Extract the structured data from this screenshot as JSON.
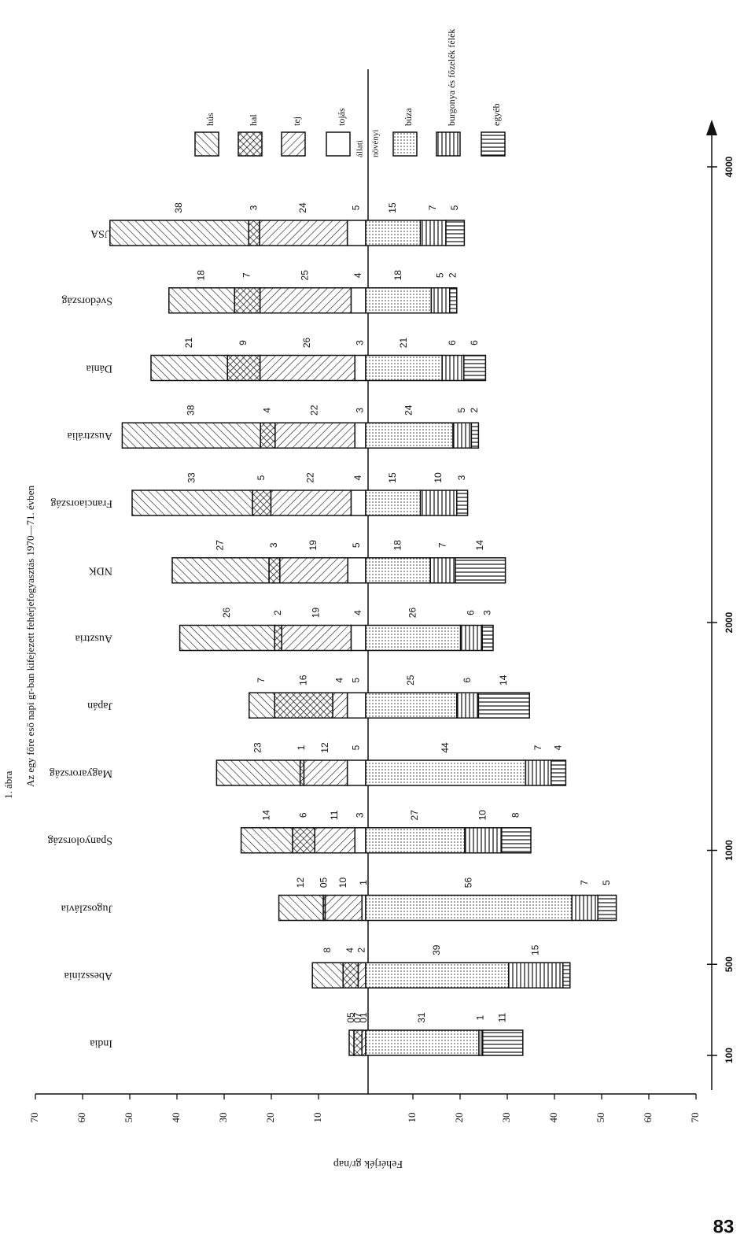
{
  "chart_data": {
    "type": "diverging_bar",
    "title": "1. ábra",
    "subtitle": "Az egy főre eső napi gr-ban kifejezett fehérjefogyasztás 1970—71. évben",
    "xlabel": "Fehérjék gr/nap",
    "group_labels": [
      "állati",
      "növényi"
    ],
    "categories": [
      "USA",
      "Svédország",
      "Dánia",
      "Ausztrália",
      "Franciaország",
      "NDK",
      "Ausztria",
      "Japán",
      "Magyarország",
      "Spanyolország",
      "Jugoszlávia",
      "Abesszínia",
      "India"
    ],
    "series": [
      {
        "name": "hús",
        "side": "left",
        "pattern": "hatch-back",
        "values": [
          29.4,
          13.9,
          16.2,
          29.3,
          25.5,
          20.5,
          20.1,
          5.4,
          17.7,
          10.9,
          9.4,
          6.5,
          1.0
        ],
        "shares": [
          "38",
          "18",
          "21",
          "38",
          "33",
          "27",
          "26",
          "7",
          "23",
          "14",
          "12",
          "8",
          "05"
        ]
      },
      {
        "name": "hal",
        "side": "left",
        "pattern": "crosshatch",
        "values": [
          2.3,
          5.4,
          6.9,
          3.1,
          3.9,
          2.3,
          1.5,
          12.3,
          0.8,
          4.7,
          0.4,
          3.2,
          1.7
        ],
        "shares": [
          "3",
          "7",
          "9",
          "4",
          "5",
          "3",
          "2",
          "16",
          "1",
          "6",
          "05",
          "4",
          "07"
        ]
      },
      {
        "name": "tej",
        "side": "left",
        "pattern": "hatch-fwd",
        "values": [
          18.6,
          19.3,
          20.1,
          16.9,
          17.0,
          14.4,
          14.7,
          3.1,
          9.2,
          8.5,
          7.8,
          1.6,
          0.8
        ],
        "shares": [
          "24",
          "25",
          "26",
          "22",
          "22",
          "19",
          "19",
          "4",
          "12",
          "11",
          "10",
          "2",
          "01"
        ]
      },
      {
        "name": "tojás",
        "side": "left",
        "pattern": "none",
        "values": [
          3.9,
          3.1,
          2.3,
          2.3,
          3.1,
          3.8,
          3.1,
          3.9,
          3.9,
          2.3,
          0.8,
          null,
          null
        ],
        "shares": [
          "5",
          "4",
          "3",
          "3",
          "4",
          "5",
          "4",
          "5",
          "5",
          "3",
          "1",
          null,
          null
        ]
      },
      {
        "name": "búza",
        "side": "right",
        "pattern": "dots",
        "values": [
          11.6,
          13.9,
          16.2,
          18.5,
          11.6,
          13.7,
          20.1,
          19.3,
          33.9,
          21.0,
          43.7,
          30.3,
          24.0
        ],
        "shares": [
          "15",
          "18",
          "21",
          "24",
          "15",
          "18",
          "26",
          "25",
          "44",
          "27",
          "56",
          "39",
          "31"
        ]
      },
      {
        "name": "burgonya és főzelék félék",
        "side": "right",
        "pattern": "vlines",
        "values": [
          5.4,
          3.9,
          4.6,
          3.9,
          7.7,
          5.3,
          4.6,
          4.6,
          5.4,
          7.8,
          5.5,
          11.5,
          0.8
        ],
        "shares": [
          "7",
          "5",
          "6",
          "5",
          "10",
          "7",
          "6",
          "6",
          "7",
          "10",
          "7",
          "15",
          "1"
        ]
      },
      {
        "name": "egyéb",
        "side": "right",
        "pattern": "hlines",
        "values": [
          3.9,
          1.5,
          4.6,
          1.5,
          2.3,
          10.6,
          2.3,
          10.8,
          3.1,
          6.2,
          3.9,
          1.5,
          8.5
        ],
        "shares": [
          "5",
          "2",
          "6",
          "2",
          "3",
          "14",
          "3",
          "14",
          "4",
          "8",
          "5",
          null,
          "11"
        ]
      }
    ],
    "xlim": [
      -70,
      70
    ],
    "xticks": [
      {
        "value": -70,
        "label": "70"
      },
      {
        "value": -60,
        "label": "60"
      },
      {
        "value": -50,
        "label": "50"
      },
      {
        "value": -40,
        "label": "40"
      },
      {
        "value": -30,
        "label": "30"
      },
      {
        "value": -20,
        "label": "20"
      },
      {
        "value": -10,
        "label": "10"
      },
      10,
      20,
      30,
      40,
      50,
      60,
      70
    ],
    "y2lim": [
      0,
      4000
    ],
    "y2ticks": [
      100,
      500,
      1000,
      2000,
      4000
    ],
    "page_number": "83"
  }
}
